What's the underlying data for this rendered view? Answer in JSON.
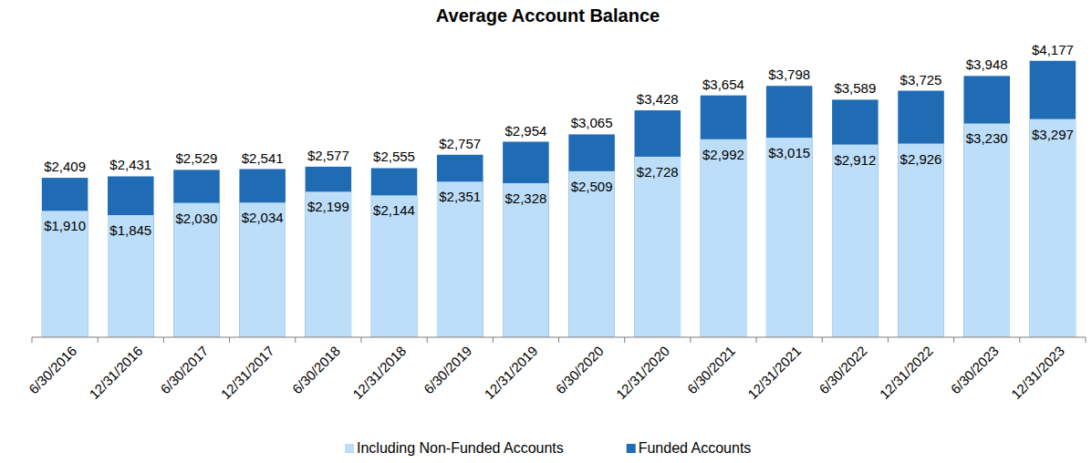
{
  "chart_data": {
    "type": "bar",
    "title": "Average Account Balance",
    "categories": [
      "6/30/2016",
      "12/31/2016",
      "6/30/2017",
      "12/31/2017",
      "6/30/2018",
      "12/31/2018",
      "6/30/2019",
      "12/31/2019",
      "6/30/2020",
      "12/31/2020",
      "6/30/2021",
      "12/31/2021",
      "6/30/2022",
      "12/31/2022",
      "6/30/2023",
      "12/31/2023"
    ],
    "series": [
      {
        "name": "Funded Accounts",
        "color": "#1f6bb4",
        "values": [
          2409,
          2431,
          2529,
          2541,
          2577,
          2555,
          2757,
          2954,
          3065,
          3428,
          3654,
          3798,
          3589,
          3725,
          3948,
          4177
        ],
        "value_labels": [
          "$2,409",
          "$2,431",
          "$2,529",
          "$2,541",
          "$2,577",
          "$2,555",
          "$2,757",
          "$2,954",
          "$3,065",
          "$3,428",
          "$3,654",
          "$3,798",
          "$3,589",
          "$3,725",
          "$3,948",
          "$4,177"
        ]
      },
      {
        "name": "Including Non-Funded Accounts",
        "color": "#bddef8",
        "values": [
          1910,
          1845,
          2030,
          2034,
          2199,
          2144,
          2351,
          2328,
          2509,
          2728,
          2992,
          3015,
          2912,
          2926,
          3230,
          3297
        ],
        "value_labels": [
          "$1,910",
          "$1,845",
          "$2,030",
          "$2,034",
          "$2,199",
          "$2,144",
          "$2,351",
          "$2,328",
          "$2,509",
          "$2,728",
          "$2,992",
          "$3,015",
          "$2,912",
          "$2,926",
          "$3,230",
          "$3,297"
        ]
      }
    ],
    "ylim": [
      0,
      4600
    ],
    "stacked": false,
    "data_labels": true,
    "tick_labels": "x",
    "legend": "bottom",
    "grid": false
  }
}
